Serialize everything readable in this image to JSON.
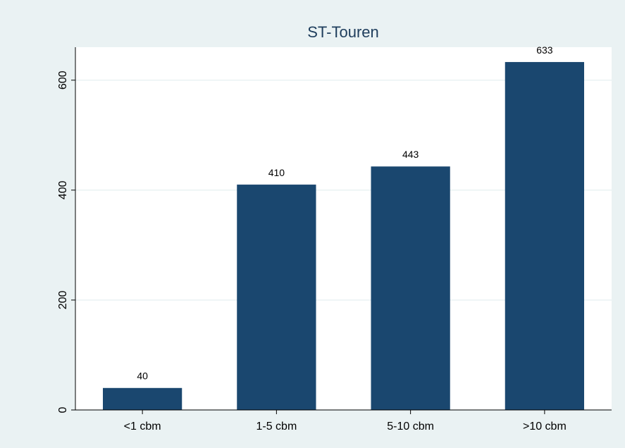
{
  "chart_data": {
    "type": "bar",
    "title": "ST-Touren",
    "categories": [
      "<1 cbm",
      "1-5 cbm",
      "5-10 cbm",
      ">10 cbm"
    ],
    "values": [
      40,
      410,
      443,
      633
    ],
    "color": "#1a476f",
    "ylim": [
      0,
      660
    ],
    "yticks": [
      0,
      200,
      400,
      600
    ],
    "grid": true
  }
}
